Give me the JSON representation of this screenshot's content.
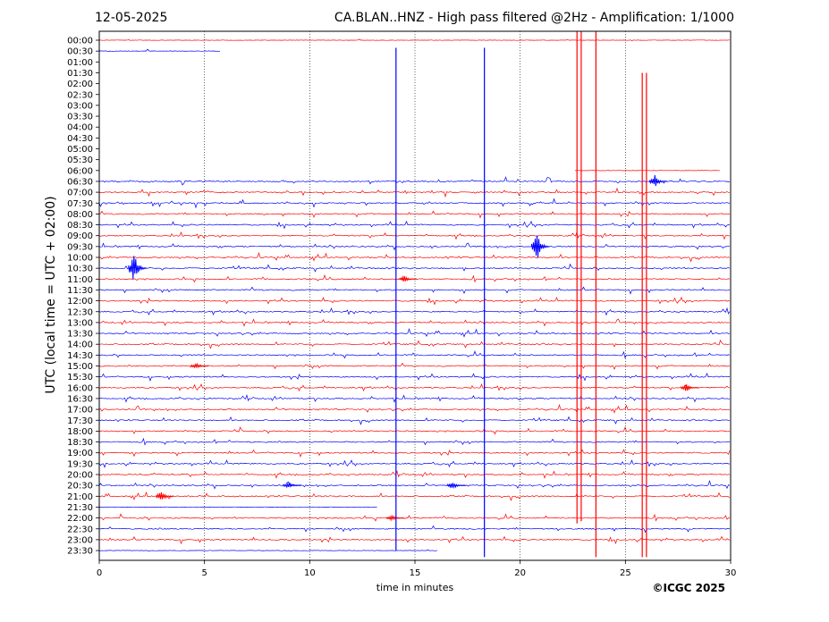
{
  "header": {
    "date": "12-05-2025",
    "title": "CA.BLAN..HNZ - High pass filtered @2Hz - Amplification: 1/1000"
  },
  "footer": {
    "copyright": "©ICGC 2025"
  },
  "chart_data": {
    "type": "line",
    "title": "CA.BLAN..HNZ - High pass filtered @2Hz - Amplification: 1/1000",
    "xlabel": "time in minutes",
    "ylabel": "UTC (local time = UTC + 02:00)",
    "xlim": [
      0,
      30
    ],
    "xticks": [
      0,
      5,
      10,
      15,
      20,
      25,
      30
    ],
    "grid_x": [
      5,
      10,
      15,
      20,
      25
    ],
    "grid_style": "dotted vertical",
    "row_labels": [
      "00:00",
      "00:30",
      "01:00",
      "01:30",
      "02:00",
      "02:30",
      "03:00",
      "03:30",
      "04:00",
      "04:30",
      "05:00",
      "05:30",
      "06:00",
      "06:30",
      "07:00",
      "07:30",
      "08:00",
      "08:30",
      "09:00",
      "09:30",
      "10:00",
      "10:30",
      "11:00",
      "11:30",
      "12:00",
      "12:30",
      "13:00",
      "13:30",
      "14:00",
      "14:30",
      "15:00",
      "15:30",
      "16:00",
      "16:30",
      "17:00",
      "17:30",
      "18:00",
      "18:30",
      "19:00",
      "19:30",
      "20:00",
      "20:30",
      "21:00",
      "21:30",
      "22:00",
      "22:30",
      "23:00",
      "23:30"
    ],
    "trace_colors": [
      "#ff0000",
      "#0000ff"
    ],
    "trace_extents": [
      [
        0,
        30
      ],
      [
        0,
        5.75
      ],
      [
        0,
        0
      ],
      [
        0,
        0
      ],
      [
        0,
        0
      ],
      [
        0,
        0
      ],
      [
        0,
        0
      ],
      [
        0,
        0
      ],
      [
        0,
        0
      ],
      [
        0,
        0
      ],
      [
        0,
        0
      ],
      [
        0,
        0
      ],
      [
        22.6,
        29.5
      ],
      [
        0,
        30
      ],
      [
        0,
        30
      ],
      [
        0,
        30
      ],
      [
        0,
        30
      ],
      [
        0,
        30
      ],
      [
        0,
        30
      ],
      [
        0,
        30
      ],
      [
        0,
        30
      ],
      [
        0,
        30
      ],
      [
        0,
        30
      ],
      [
        0,
        30
      ],
      [
        0,
        30
      ],
      [
        0,
        30
      ],
      [
        0,
        30
      ],
      [
        0,
        30
      ],
      [
        0,
        30
      ],
      [
        0,
        30
      ],
      [
        0,
        30
      ],
      [
        0,
        30
      ],
      [
        0,
        30
      ],
      [
        0,
        30
      ],
      [
        0,
        30
      ],
      [
        0,
        30
      ],
      [
        0,
        30
      ],
      [
        0,
        30
      ],
      [
        0,
        30
      ],
      [
        0,
        30
      ],
      [
        0,
        30
      ],
      [
        0,
        30
      ],
      [
        0,
        30
      ],
      [
        0,
        13.2
      ],
      [
        0,
        30
      ],
      [
        0,
        30
      ],
      [
        0,
        30
      ],
      [
        0,
        16.1
      ]
    ],
    "spikes": [
      {
        "x": 14.1,
        "from_row": 0.7,
        "to_row": 47.0,
        "color": "#0000ff"
      },
      {
        "x": 18.3,
        "from_row": 0.7,
        "to_row": 47.6,
        "color": "#0000ff"
      },
      {
        "x": 22.7,
        "from_row": -1,
        "to_row": 44.5,
        "color": "#ff0000"
      },
      {
        "x": 22.9,
        "from_row": -1,
        "to_row": 44.3,
        "color": "#ff0000"
      },
      {
        "x": 23.6,
        "from_row": -1,
        "to_row": 47.6,
        "color": "#ff0000"
      },
      {
        "x": 25.8,
        "from_row": 3.0,
        "to_row": 47.6,
        "color": "#ff0000"
      },
      {
        "x": 26.0,
        "from_row": 3.0,
        "to_row": 47.6,
        "color": "#ff0000"
      }
    ],
    "events": [
      {
        "row": 21,
        "x": 1.65,
        "amp": 1.6
      },
      {
        "row": 19,
        "x": 20.8,
        "amp": 1.5
      },
      {
        "row": 13,
        "x": 26.4,
        "amp": 0.6
      },
      {
        "row": 42,
        "x": 2.95,
        "amp": 0.6
      },
      {
        "row": 41,
        "x": 9.0,
        "amp": 0.35
      },
      {
        "row": 41,
        "x": 16.8,
        "amp": 0.35
      },
      {
        "row": 44,
        "x": 13.9,
        "amp": 0.3
      },
      {
        "row": 30,
        "x": 4.6,
        "amp": 0.35
      },
      {
        "row": 32,
        "x": 27.9,
        "amp": 0.4
      },
      {
        "row": 22,
        "x": 14.5,
        "amp": 0.35
      }
    ]
  }
}
